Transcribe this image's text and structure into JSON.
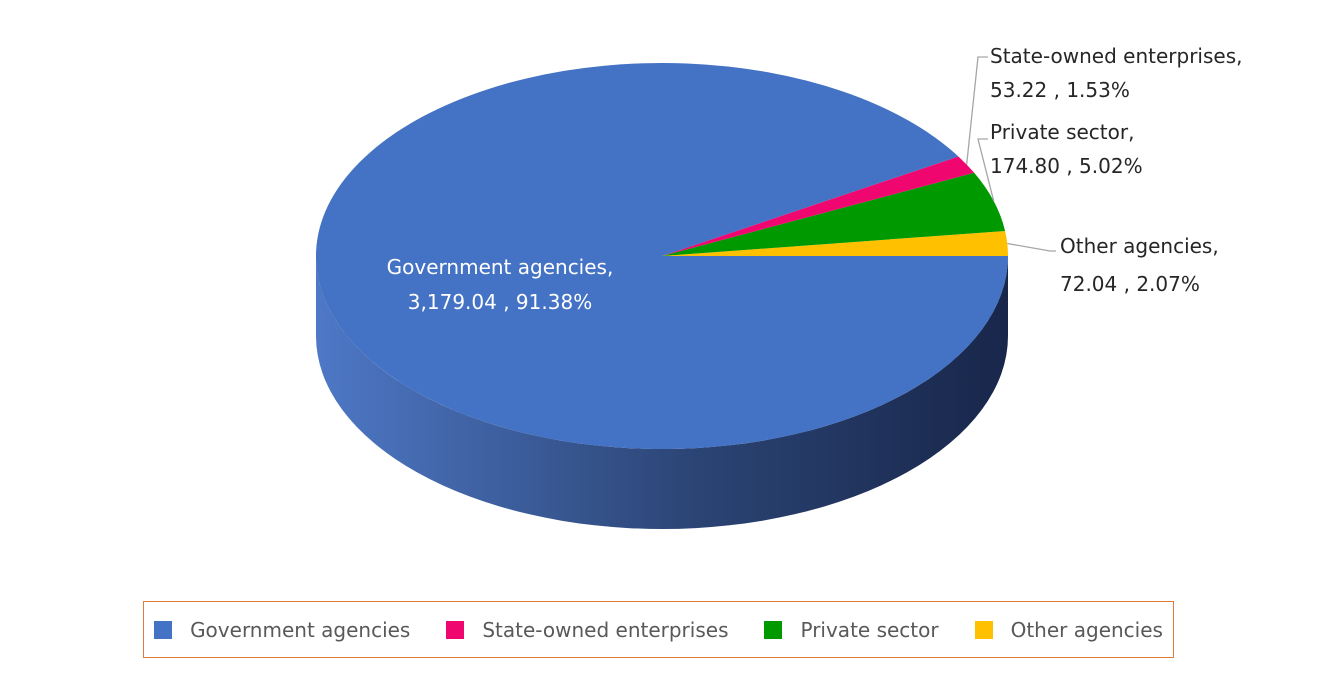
{
  "chart_data": {
    "type": "pie",
    "title": "",
    "categories": [
      "Government agencies",
      "State-owned enterprises",
      "Private sector",
      "Other agencies"
    ],
    "values": [
      3179.04,
      53.22,
      174.8,
      72.04
    ],
    "percents": [
      91.38,
      1.53,
      5.02,
      2.07
    ],
    "value_labels": [
      "3,179.04",
      "53.22",
      "174.80",
      "72.04"
    ],
    "percent_labels": [
      "91.38%",
      "1.53%",
      "5.02%",
      "2.07%"
    ],
    "colors": [
      "#4472C4",
      "#F0066F",
      "#009900",
      "#FFC000"
    ],
    "legend_position": "bottom",
    "style": "3d-pie"
  }
}
